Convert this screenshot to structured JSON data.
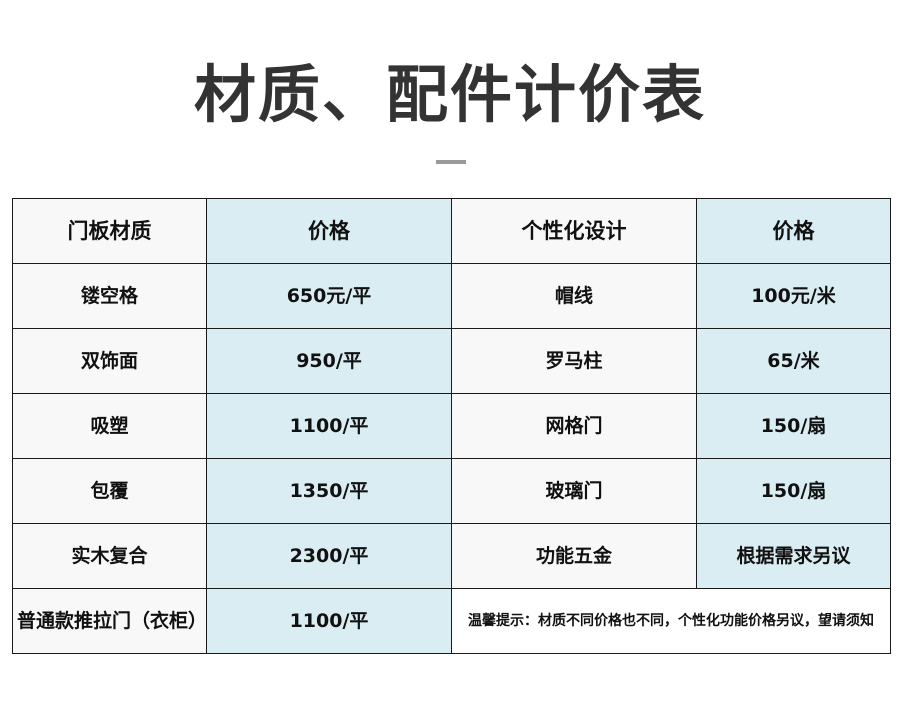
{
  "title": "材质、配件计价表",
  "headers": [
    "门板材质",
    "价格",
    "个性化设计",
    "价格"
  ],
  "rows": [
    {
      "material": "镂空格",
      "material_price": "650元/平",
      "design": "帽线",
      "design_price": "100元/米"
    },
    {
      "material": "双饰面",
      "material_price": "950/平",
      "design": "罗马柱",
      "design_price": "65/米"
    },
    {
      "material": "吸塑",
      "material_price": "1100/平",
      "design": "网格门",
      "design_price": "150/扇"
    },
    {
      "material": "包覆",
      "material_price": "1350/平",
      "design": "玻璃门",
      "design_price": "150/扇"
    },
    {
      "material": "实木复合",
      "material_price": "2300/平",
      "design": "功能五金",
      "design_price": "根据需求另议"
    }
  ],
  "last_row": {
    "material": "普通款推拉门（衣柜）",
    "material_price": "1100/平",
    "note": "温馨提示：材质不同价格也不同，个性化功能价格另议，望请须知"
  },
  "colors": {
    "highlight": "#dff0ef",
    "price_column": "#daedf2",
    "label_column": "#f8f8f8"
  }
}
